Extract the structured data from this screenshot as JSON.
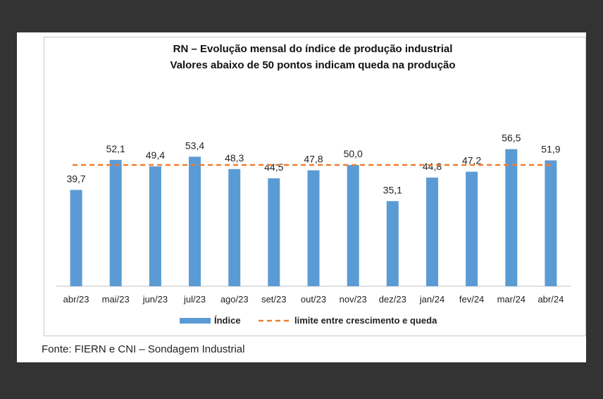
{
  "chart_data": {
    "type": "bar",
    "title": "RN – Evolução mensal do índice de produção industrial",
    "subtitle": "Valores abaixo de 50 pontos indicam queda na produção",
    "categories": [
      "abr/23",
      "mai/23",
      "jun/23",
      "jul/23",
      "ago/23",
      "set/23",
      "out/23",
      "nov/23",
      "dez/23",
      "jan/24",
      "fev/24",
      "mar/24",
      "abr/24"
    ],
    "series": [
      {
        "name": "Índice",
        "values": [
          39.7,
          52.1,
          49.4,
          53.4,
          48.3,
          44.5,
          47.8,
          50.0,
          35.1,
          44.8,
          47.2,
          56.5,
          51.9
        ],
        "labels": [
          "39,7",
          "52,1",
          "49,4",
          "53,4",
          "48,3",
          "44,5",
          "47,8",
          "50,0",
          "35,1",
          "44,8",
          "47,2",
          "56,5",
          "51,9"
        ],
        "color": "#5b9bd5"
      }
    ],
    "reference_line": {
      "name": "limite entre crescimento e queda",
      "value": 50,
      "color": "#ed7d31",
      "style": "dashed"
    },
    "ylim": [
      0,
      60
    ],
    "grid": false,
    "legend_position": "bottom"
  },
  "source_note": "Fonte: FIERN e CNI – Sondagem Industrial"
}
